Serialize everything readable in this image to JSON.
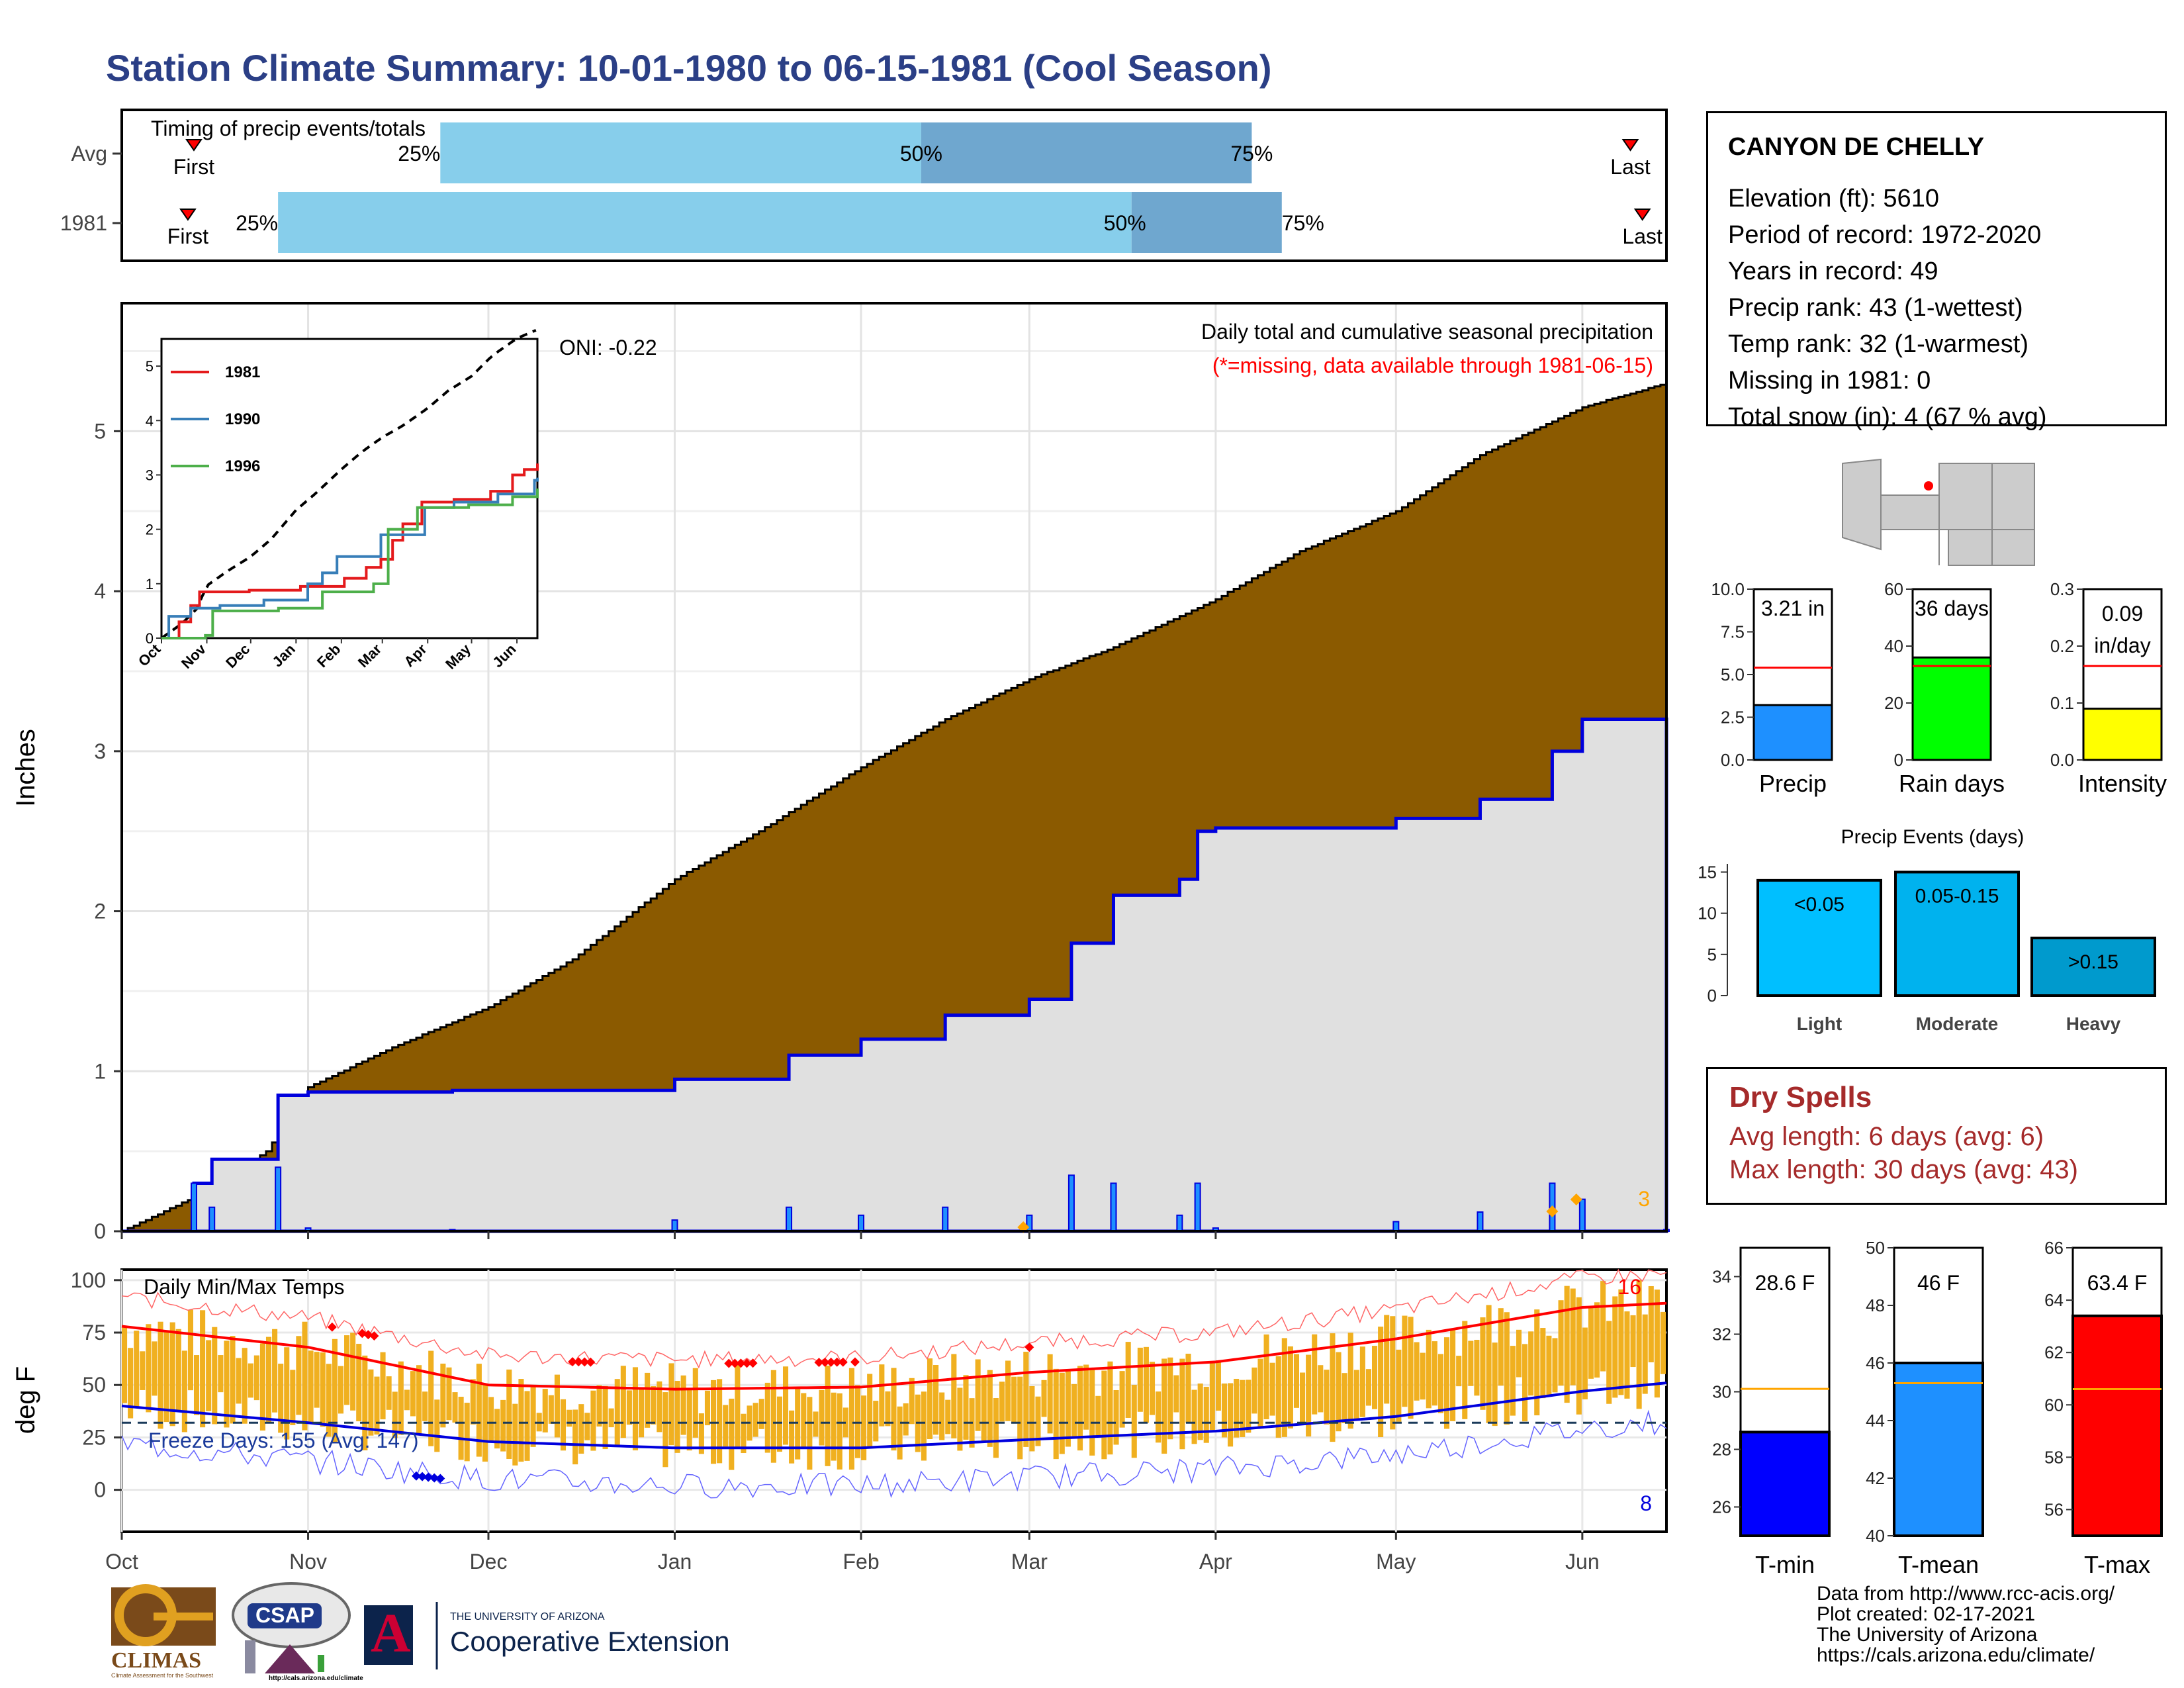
{
  "title": "Station Climate Summary: 10-01-1980 to 06-15-1981 (Cool Season)",
  "colors": {
    "title": "#2b3f86",
    "soil": "#8b5a00",
    "grey_fill": "#e0e0e0",
    "blue_line": "#0000dd",
    "light_blue": "#87ceeb",
    "mid_blue": "#6fa7cf",
    "orange": "#f0b020",
    "red": "#ff0000",
    "dry_spell_red": "#a52a2a"
  },
  "timing_panel": {
    "title": "Timing of precip events/totals",
    "rows": [
      {
        "label": "Avg",
        "first_label": "First",
        "last_label": "Last",
        "first_date": "1980-10-13",
        "last_date": "1981-06-09",
        "p25_date": "1980-11-23",
        "p50_date": "1981-02-11",
        "p75_date": "1981-04-07",
        "p25": "25%",
        "p50": "50%",
        "p75": "75%"
      },
      {
        "label": "1981",
        "first_label": "First",
        "last_label": "Last",
        "first_date": "1980-10-12",
        "last_date": "1981-06-11",
        "p25_date": "1980-10-27",
        "p50_date": "1981-03-18",
        "p75_date": "1981-04-12",
        "p25": "25%",
        "p50": "50%",
        "p75": "75%"
      }
    ]
  },
  "station": {
    "name": "CANYON DE CHELLY",
    "elevation": "Elevation (ft): 5610",
    "period": "Period of record: 1972-2020",
    "years": "Years in record: 49",
    "precip_rank": "Precip rank: 43 (1-wettest)",
    "temp_rank": "Temp rank: 32 (1-warmest)",
    "missing": "Missing in 1981: 0",
    "snow": "Total snow (in): 4 (67 % avg)"
  },
  "precip_panel": {
    "ylabel": "Inches",
    "oni": "ONI: -0.22",
    "note1": "Daily total and cumulative seasonal precipitation",
    "note2": "(*=missing, data available through 1981-06-15)",
    "corner_count": "3",
    "yticks": [
      "0",
      "1",
      "2",
      "3",
      "4",
      "5"
    ]
  },
  "inset": {
    "legend": [
      {
        "name": "1981",
        "color": "#e41a1c"
      },
      {
        "name": "1990",
        "color": "#377eb8"
      },
      {
        "name": "1996",
        "color": "#4daf4a"
      }
    ],
    "yticks": [
      "0",
      "1",
      "2",
      "3",
      "4",
      "5"
    ],
    "xticks": [
      "Oct",
      "Nov",
      "Dec",
      "Jan",
      "Feb",
      "Mar",
      "Apr",
      "May",
      "Jun"
    ]
  },
  "temp_panel": {
    "ylabel": "deg F",
    "title": "Daily Min/Max Temps",
    "freeze": "Freeze Days: 155 (Avg: 147)",
    "count_high": "16",
    "count_low": "8",
    "yticks": [
      "0",
      "25",
      "50",
      "75",
      "100"
    ]
  },
  "month_ticks": [
    "Oct",
    "Nov",
    "Dec",
    "Jan",
    "Feb",
    "Mar",
    "Apr",
    "May",
    "Jun"
  ],
  "summary_bars": [
    {
      "label": "Precip",
      "value_text": "3.21 in",
      "value": 3.21,
      "avg": 5.4,
      "max": 10,
      "ticks": [
        "0.0",
        "2.5",
        "5.0",
        "7.5",
        "10.0"
      ],
      "color": "#1e90ff"
    },
    {
      "label": "Rain days",
      "value_text": "36 days",
      "value": 36,
      "avg": 33,
      "max": 60,
      "ticks": [
        "0",
        "20",
        "40",
        "60"
      ],
      "color": "#00ff00"
    },
    {
      "label": "Intensity",
      "value_text": "0.09 in/day",
      "value_line1": "0.09",
      "value_line2": "in/day",
      "value": 0.09,
      "avg": 0.165,
      "max": 0.3,
      "ticks": [
        "0.0",
        "0.1",
        "0.2",
        "0.3"
      ],
      "color": "#ffff00"
    }
  ],
  "events": {
    "title": "Precip Events (days)",
    "yticks": [
      "0",
      "5",
      "10",
      "15"
    ],
    "bars": [
      {
        "category": "Light",
        "label": "<0.05",
        "value": 14,
        "color": "#00bfff"
      },
      {
        "category": "Moderate",
        "label": "0.05-0.15",
        "value": 15,
        "color": "#00b2ee"
      },
      {
        "category": "Heavy",
        "label": ">0.15",
        "value": 7,
        "color": "#009acd"
      }
    ]
  },
  "dry_spells": {
    "title": "Dry Spells",
    "avg": "Avg length: 6 days (avg: 6)",
    "max": "Max length: 30 days (avg: 43)"
  },
  "temp_bars": [
    {
      "label": "T-min",
      "value_text": "28.6 F",
      "value": 28.6,
      "avg": 30.1,
      "ymin": 25,
      "ymax": 35,
      "ticks": [
        "26",
        "28",
        "30",
        "32",
        "34"
      ],
      "color": "#0000ff"
    },
    {
      "label": "T-mean",
      "value_text": "46 F",
      "value": 46.0,
      "avg": 45.3,
      "ymin": 40,
      "ymax": 50,
      "ticks": [
        "40",
        "42",
        "44",
        "46",
        "48",
        "50"
      ],
      "color": "#1e90ff"
    },
    {
      "label": "T-max",
      "value_text": "63.4 F",
      "value": 63.4,
      "avg": 60.6,
      "ymin": 55,
      "ymax": 66,
      "ticks": [
        "56",
        "58",
        "60",
        "62",
        "64",
        "66"
      ],
      "color": "#ff0000"
    }
  ],
  "credits": [
    "Data from http://www.rcc-acis.org/",
    "Plot created: 02-17-2021",
    "The University of Arizona",
    "https://cals.arizona.edu/climate/"
  ],
  "logos": {
    "climas": "CLIMAS",
    "climas_sub": "Climate Assessment for the Southwest",
    "csap": "CSAP",
    "csap_url": "http://cals.arizona.edu/climate",
    "ua_small": "THE UNIVERSITY OF ARIZONA",
    "ua_ext": "Cooperative Extension",
    "ua_letter": "A"
  },
  "chart_data": [
    {
      "type": "area",
      "title": "Daily total and cumulative seasonal precipitation",
      "ylabel": "Inches",
      "ylim": [
        0,
        5.8
      ],
      "xlim": [
        "1980-10-01",
        "1981-06-15"
      ],
      "series": [
        {
          "name": "",
          "note": "cumulative average (brown area top)",
          "x": [
            "1980-10-01",
            "1980-10-15",
            "1980-10-25",
            "1980-11-01",
            "1980-11-15",
            "1980-12-01",
            "1980-12-15",
            "1981-01-01",
            "1981-01-15",
            "1981-02-01",
            "1981-02-15",
            "1981-03-01",
            "1981-03-15",
            "1981-04-01",
            "1981-04-15",
            "1981-05-01",
            "1981-05-15",
            "1981-06-01",
            "1981-06-15"
          ],
          "values": [
            0,
            0.25,
            0.5,
            0.9,
            1.15,
            1.4,
            1.7,
            2.2,
            2.5,
            2.9,
            3.2,
            3.45,
            3.65,
            3.95,
            4.25,
            4.5,
            4.85,
            5.15,
            5.3
          ]
        },
        {
          "name": "",
          "note": "1981 cumulative (blue line)",
          "x": [
            "1980-10-01",
            "1980-10-13",
            "1980-10-16",
            "1980-10-26",
            "1980-10-27",
            "1980-11-01",
            "1980-11-25",
            "1981-01-01",
            "1981-01-20",
            "1981-02-01",
            "1981-02-15",
            "1981-03-01",
            "1981-03-08",
            "1981-03-15",
            "1981-03-26",
            "1981-03-29",
            "1981-04-01",
            "1981-05-01",
            "1981-05-15",
            "1981-05-27",
            "1981-06-01",
            "1981-06-15"
          ],
          "values": [
            0,
            0.3,
            0.45,
            0.45,
            0.85,
            0.87,
            0.88,
            0.95,
            1.1,
            1.2,
            1.35,
            1.45,
            1.8,
            2.1,
            2.2,
            2.5,
            2.52,
            2.58,
            2.7,
            3.0,
            3.2,
            3.21
          ]
        }
      ]
    },
    {
      "type": "line",
      "title": "Daily Min/Max Temps",
      "ylabel": "deg F",
      "ylim": [
        -20,
        105
      ],
      "x": [
        "1980-10-01",
        "1980-11-01",
        "1980-12-01",
        "1981-01-01",
        "1981-02-01",
        "1981-03-01",
        "1981-04-01",
        "1981-05-01",
        "1981-06-01",
        "1981-06-15"
      ],
      "series": [
        {
          "name": "",
          "note": "average daily max",
          "values": [
            78,
            68,
            50,
            48,
            49,
            56,
            61,
            72,
            87,
            89
          ]
        },
        {
          "name": "",
          "note": "average daily min",
          "values": [
            40,
            32,
            23,
            20,
            20,
            24,
            28,
            35,
            47,
            51
          ]
        },
        {
          "name": "",
          "note": "freeze threshold",
          "values": [
            32,
            32,
            32,
            32,
            32,
            32,
            32,
            32,
            32,
            32
          ]
        }
      ]
    }
  ]
}
